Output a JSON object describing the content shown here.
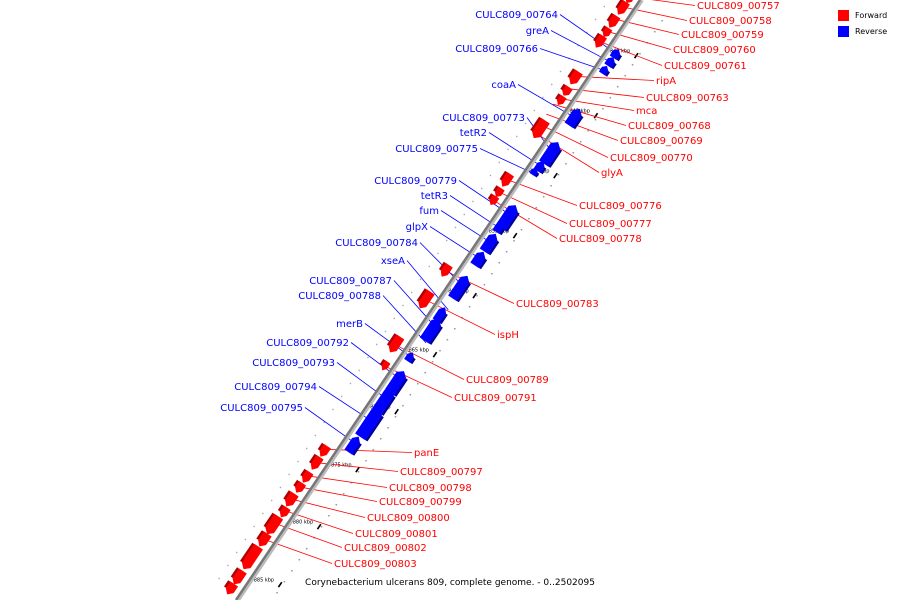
{
  "caption": "Corynebacterium ulcerans 809, complete genome. - 0..2502095",
  "colors": {
    "forward": "#ff0000",
    "reverse": "#0000ff",
    "backbone": "#888888"
  },
  "legend": [
    {
      "label": "Forward",
      "color": "#ff0000"
    },
    {
      "label": "Reverse",
      "color": "#0000ff"
    }
  ],
  "ticks": [
    "840 kbp",
    "845 kbp",
    "850 kbp",
    "855 kbp",
    "860 kbp",
    "865 kbp",
    "870 kbp",
    "875 kbp",
    "880 kbp",
    "885 kbp"
  ],
  "forward_genes": [
    "CULC809_00757",
    "CULC809_00758",
    "CULC809_00759",
    "CULC809_00760",
    "CULC809_00761",
    "ripA",
    "CULC809_00763",
    "mca",
    "CULC809_00768",
    "CULC809_00769",
    "CULC809_00770",
    "glyA",
    "CULC809_00776",
    "CULC809_00777",
    "CULC809_00778",
    "CULC809_00783",
    "ispH",
    "CULC809_00789",
    "CULC809_00791",
    "panE",
    "CULC809_00797",
    "CULC809_00798",
    "CULC809_00799",
    "CULC809_00800",
    "CULC809_00801",
    "CULC809_00802",
    "CULC809_00803"
  ],
  "reverse_genes": [
    "CULC809_00764",
    "greA",
    "CULC809_00766",
    "coaA",
    "CULC809_00773",
    "tetR2",
    "CULC809_00775",
    "CULC809_00779",
    "tetR3",
    "fum",
    "glpX",
    "CULC809_00784",
    "xseA",
    "CULC809_00787",
    "CULC809_00788",
    "merB",
    "CULC809_00792",
    "CULC809_00793",
    "CULC809_00794",
    "CULC809_00795"
  ]
}
